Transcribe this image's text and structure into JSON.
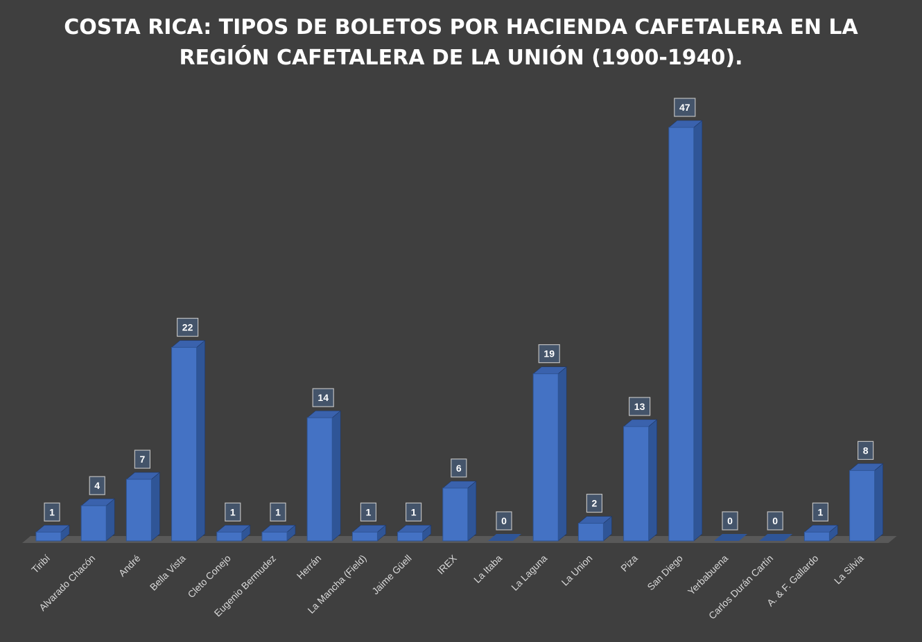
{
  "chart_data": {
    "type": "bar",
    "title_lines": [
      "COSTA RICA:  TIPOS DE BOLETOS POR HACIENDA CAFETALERA EN LA",
      "REGIÓN CAFETALERA DE LA UNIÓN (1900-1940)."
    ],
    "categories": [
      "Tiribí",
      "Alvarado Chacón",
      "André",
      "Bella Vista",
      "Cleto Conejo",
      "Eugenio Bermudez",
      "Herrán",
      "La Mancha (Field)",
      "Jaime Güell",
      "IREX",
      "La Itaba",
      "La Laguna",
      "La Union",
      "Piza",
      "San Diego",
      "Yerbabuena",
      "Carlos Durán Cartín",
      "A. & F. Gallardo",
      "La Silvia"
    ],
    "values": [
      1,
      4,
      7,
      22,
      1,
      1,
      14,
      1,
      1,
      6,
      0,
      19,
      2,
      13,
      47,
      0,
      0,
      1,
      8
    ],
    "data_labels": [
      "1",
      "4",
      "7",
      "22",
      "1",
      "1",
      "14",
      "1",
      "1",
      "6",
      "0",
      "19",
      "2",
      "13",
      "47",
      "0",
      "0",
      "1",
      "8"
    ],
    "ylim": [
      0,
      47
    ],
    "grid": false,
    "legend": "none",
    "three_d": true,
    "colors": {
      "background": "#3f3f3f",
      "bar_front": "#4472c4",
      "bar_side": "#2f5597",
      "bar_top": "#3a62ad",
      "floor": "#595959",
      "label_bg": "#44546a",
      "label_border": "#bfbfbf",
      "text": "#ffffff",
      "tick_text": "#d9d9d9"
    }
  }
}
